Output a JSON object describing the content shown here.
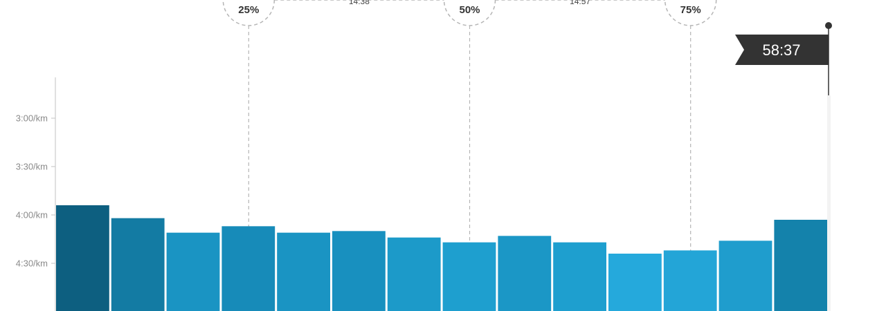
{
  "chart_data": {
    "type": "bar",
    "y_axis": {
      "ticks": [
        "3:00/km",
        "3:30/km",
        "4:00/km",
        "4:30/km"
      ],
      "tick_seconds": [
        180,
        210,
        240,
        270
      ],
      "inverted": true
    },
    "bars": [
      {
        "pace_seconds": 234,
        "color": "#0d5f80"
      },
      {
        "pace_seconds": 242,
        "color": "#137ba3"
      },
      {
        "pace_seconds": 251,
        "color": "#1a94c3"
      },
      {
        "pace_seconds": 247,
        "color": "#178bb9"
      },
      {
        "pace_seconds": 251,
        "color": "#1a94c3"
      },
      {
        "pace_seconds": 250,
        "color": "#1890bf"
      },
      {
        "pace_seconds": 254,
        "color": "#1c9ac9"
      },
      {
        "pace_seconds": 257,
        "color": "#1e9fcf"
      },
      {
        "pace_seconds": 253,
        "color": "#1b97c6"
      },
      {
        "pace_seconds": 257,
        "color": "#1e9fcf"
      },
      {
        "pace_seconds": 264,
        "color": "#25a9dc"
      },
      {
        "pace_seconds": 262,
        "color": "#23a5d7"
      },
      {
        "pace_seconds": 256,
        "color": "#1f9dcd"
      },
      {
        "pace_seconds": 243,
        "color": "#1482ab"
      }
    ],
    "markers": [
      {
        "label": "25%",
        "after_bar": 3
      },
      {
        "label": "50%",
        "after_bar": 7
      },
      {
        "label": "75%",
        "after_bar": 11
      }
    ],
    "splits": [
      "14:38",
      "14:57"
    ],
    "finish": {
      "label": "58:37"
    },
    "colors": {
      "axis": "#cccccc",
      "dash": "#b5b5b5",
      "flag": "#333333"
    }
  }
}
